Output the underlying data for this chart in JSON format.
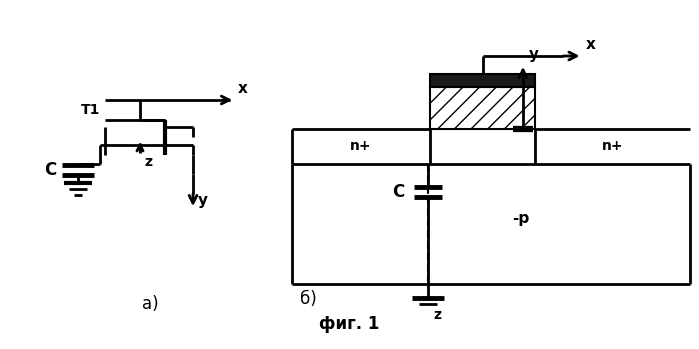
{
  "bg_color": "#ffffff",
  "line_color": "#000000",
  "fig_label": "фиг. 1",
  "label_a": "а)",
  "label_b": "б)",
  "label_x": "x",
  "label_y": "y",
  "label_z": "z",
  "label_T1": "T1",
  "label_C_left": "C",
  "label_C_right": "C",
  "label_np_left": "n+",
  "label_np_right": "n+",
  "label_mp": "-p",
  "lw": 2.0
}
